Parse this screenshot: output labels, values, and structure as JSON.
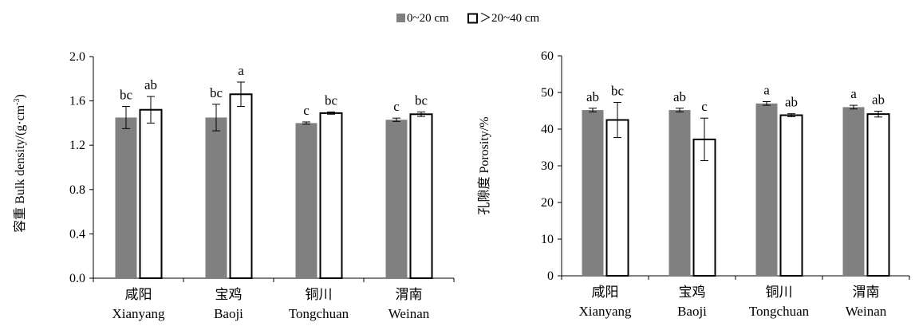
{
  "legend": {
    "position": "top-center",
    "entries": [
      {
        "label": "0~20 cm",
        "style": "filled",
        "color": "#808080"
      },
      {
        "label": "＞20~40 cm",
        "style": "hollow",
        "color": "#000000"
      }
    ]
  },
  "chart_data": [
    {
      "type": "bar",
      "ylabel": "容重 Bulk density/(g·cm",
      "ylabel_sup": "-3",
      "ylabel_close": ")",
      "ylim": [
        0,
        2.0
      ],
      "yticks": [
        "0.0",
        "0.4",
        "0.8",
        "1.2",
        "1.6",
        "2.0"
      ],
      "categories": [
        {
          "cn": "咸阳",
          "en": "Xianyang"
        },
        {
          "cn": "宝鸡",
          "en": "Baoji"
        },
        {
          "cn": "铜川",
          "en": "Tongchuan"
        },
        {
          "cn": "渭南",
          "en": "Weinan"
        }
      ],
      "series": [
        {
          "name": "0~20 cm",
          "values": [
            1.45,
            1.45,
            1.4,
            1.43
          ],
          "errors": [
            0.1,
            0.12,
            0.01,
            0.015
          ],
          "labels": [
            "bc",
            "bc",
            "c",
            "c"
          ]
        },
        {
          "name": "＞20~40 cm",
          "values": [
            1.52,
            1.66,
            1.49,
            1.48
          ],
          "errors": [
            0.12,
            0.11,
            0.01,
            0.02
          ],
          "labels": [
            "ab",
            "a",
            "bc",
            "bc"
          ]
        }
      ],
      "grid": false
    },
    {
      "type": "bar",
      "ylabel": "孔隙度 Porosity/%",
      "ylim": [
        0,
        60
      ],
      "yticks": [
        "0",
        "10",
        "20",
        "30",
        "40",
        "50",
        "60"
      ],
      "categories": [
        {
          "cn": "咸阳",
          "en": "Xianyang"
        },
        {
          "cn": "宝鸡",
          "en": "Baoji"
        },
        {
          "cn": "铜川",
          "en": "Tongchuan"
        },
        {
          "cn": "渭南",
          "en": "Weinan"
        }
      ],
      "series": [
        {
          "name": "0~20 cm",
          "values": [
            45.2,
            45.2,
            47.0,
            46.0
          ],
          "errors": [
            0.5,
            0.5,
            0.5,
            0.5
          ],
          "labels": [
            "ab",
            "ab",
            "a",
            "a"
          ]
        },
        {
          "name": "＞20~40 cm",
          "values": [
            42.5,
            37.2,
            43.8,
            44.1
          ],
          "errors": [
            4.8,
            5.8,
            0.4,
            0.8
          ],
          "labels": [
            "bc",
            "c",
            "ab",
            "ab"
          ]
        }
      ],
      "grid": false
    }
  ]
}
